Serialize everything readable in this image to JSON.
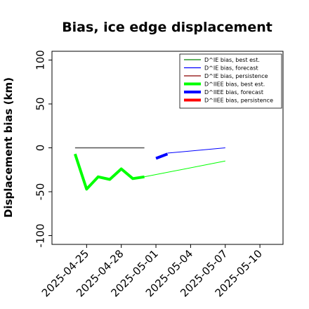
{
  "chart_data": {
    "type": "line",
    "title": "Bias, ice edge displacement",
    "xlabel": "",
    "ylabel": "Displacement bias (km)",
    "ylim": [
      -110,
      110
    ],
    "yticks": [
      -100,
      -50,
      0,
      50,
      100
    ],
    "xlim": [
      "2025-04-22",
      "2025-05-12"
    ],
    "xticks": [
      {
        "date": "2025-04-25",
        "label": "2025-04-25",
        "color": "#000000"
      },
      {
        "date": "2025-04-28",
        "label": "2025-04-28",
        "color": "#000000"
      },
      {
        "date": "2025-05-01",
        "label": "2025-05-01",
        "color": "#228b22"
      },
      {
        "date": "2025-05-04",
        "label": "2025-05-04",
        "color": "#000000"
      },
      {
        "date": "2025-05-07",
        "label": "2025-05-07",
        "color": "#000000"
      },
      {
        "date": "2025-05-10",
        "label": "2025-05-10",
        "color": "#000000"
      }
    ],
    "grid": false,
    "legend_position": "top-right",
    "series": [
      {
        "name": "D^IE bias, best est.",
        "color": "#008000",
        "width": 1,
        "x": [],
        "y": []
      },
      {
        "name": "D^IE bias, forecast",
        "color": "#0000ff",
        "width": 1,
        "x": [
          "2025-05-02",
          "2025-05-07"
        ],
        "y": [
          -6,
          0
        ]
      },
      {
        "name": "D^IE bias, persistence",
        "color": "#8b0000",
        "width": 1,
        "x": [],
        "y": []
      },
      {
        "name": "D^IIEE bias, best est.",
        "color": "#00ff00",
        "width": 4,
        "x": [
          "2025-04-24",
          "2025-04-25",
          "2025-04-26",
          "2025-04-27",
          "2025-04-28",
          "2025-04-29",
          "2025-04-30"
        ],
        "y": [
          -7,
          -47,
          -33,
          -36,
          -24,
          -35,
          -33
        ]
      },
      {
        "name": "D^IIEE bias, forecast",
        "color": "#0000ff",
        "width": 4,
        "x": [
          "2025-05-01",
          "2025-05-02"
        ],
        "y": [
          -12,
          -7
        ]
      },
      {
        "name": "D^IIEE bias, persistence",
        "color": "#ff0000",
        "width": 4,
        "x": [],
        "y": []
      },
      {
        "name": "",
        "color": "#00ff00",
        "width": 1,
        "x": [
          "2025-04-30",
          "2025-05-07"
        ],
        "y": [
          -33,
          -15
        ]
      },
      {
        "name": "",
        "color": "#555555",
        "width": 1.5,
        "x": [
          "2025-04-24",
          "2025-04-30"
        ],
        "y": [
          0,
          0
        ]
      }
    ]
  }
}
